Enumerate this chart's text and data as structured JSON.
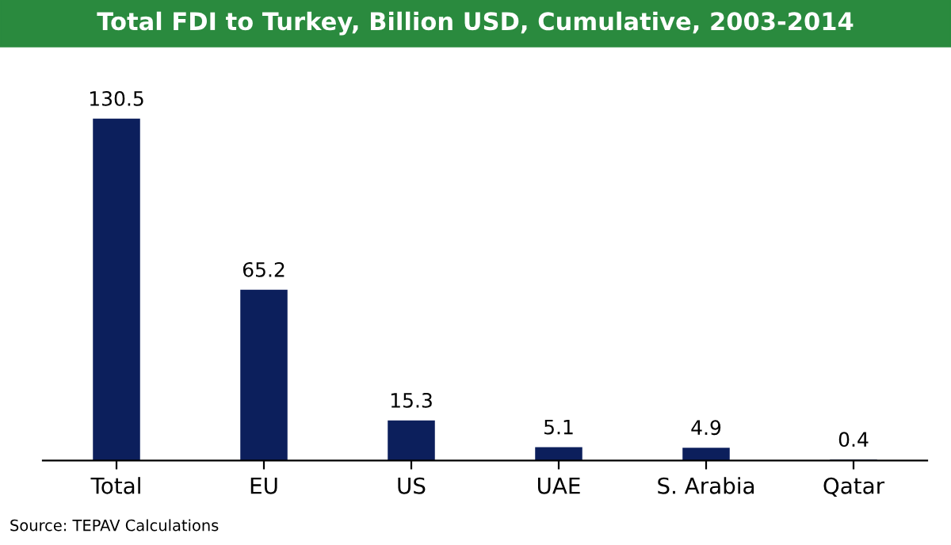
{
  "chart_data": {
    "type": "bar",
    "title": "Total FDI to Turkey, Billion USD, Cumulative, 2003-2014",
    "categories": [
      "Total",
      "EU",
      "US",
      "UAE",
      "S. Arabia",
      "Qatar"
    ],
    "values": [
      130.5,
      65.2,
      15.3,
      5.1,
      4.9,
      0.4
    ],
    "color": "#0c1f5c",
    "data_labels": true,
    "grid": false,
    "legend": false,
    "tick_labels": "x",
    "annotations": [
      "Source: TEPAV Calculations"
    ]
  }
}
